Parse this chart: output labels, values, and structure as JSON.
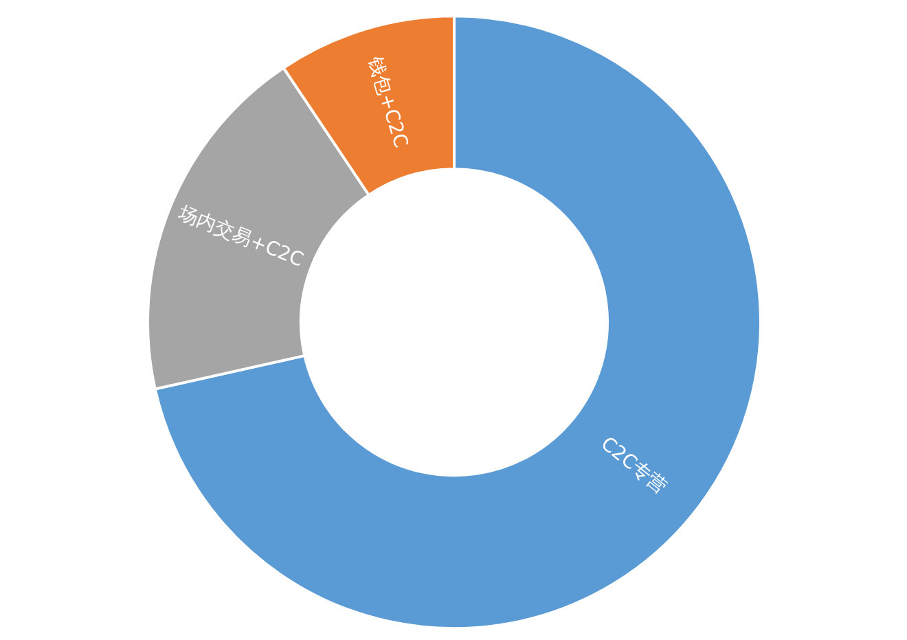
{
  "chart_data": {
    "type": "donut",
    "categories": [
      "C2C专营",
      "场内交易+C2C",
      "钱包+C2C"
    ],
    "values": [
      71.5,
      19.1,
      9.4
    ],
    "colors": [
      "#5b9bd5",
      "#a5a5a5",
      "#ed7d31"
    ],
    "data_labels": false,
    "legend": false
  }
}
